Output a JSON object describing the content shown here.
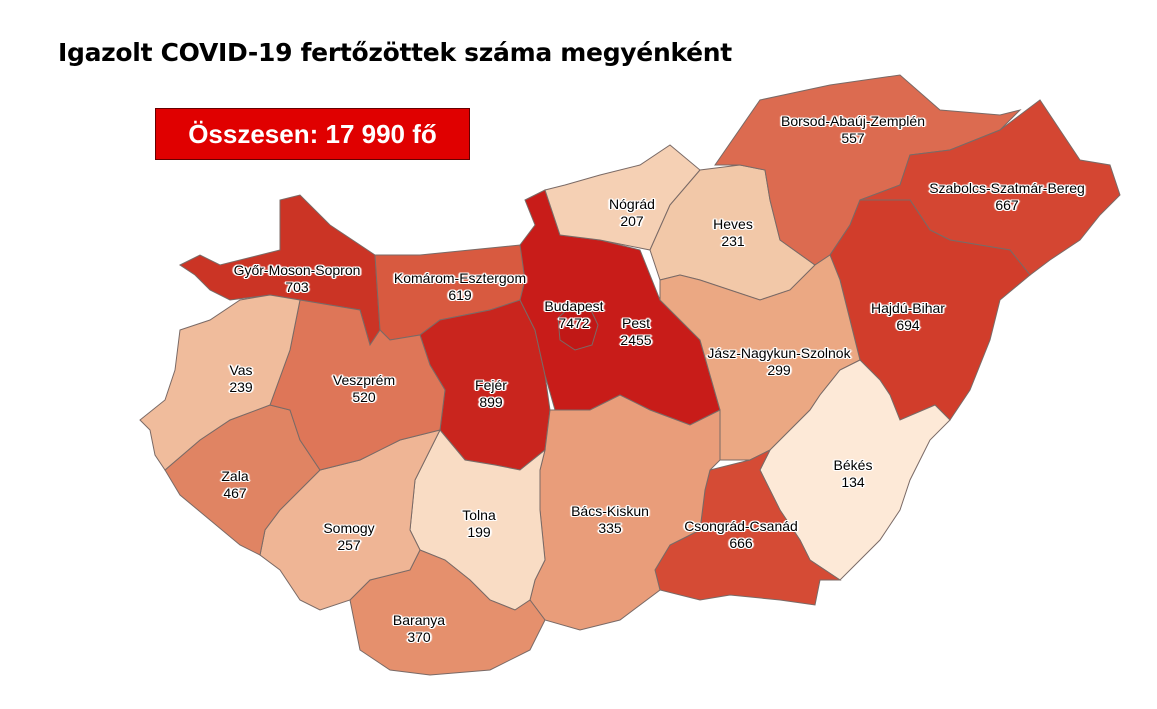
{
  "title": "Igazolt COVID-19 fertőzöttek száma megyénként",
  "total_label": "Összesen: 17 990 fő",
  "counties": [
    {
      "name": "Győr-Moson-Sopron",
      "value": "703",
      "color": "#cb3425"
    },
    {
      "name": "Komárom-Esztergom",
      "value": "619",
      "color": "#d85a40"
    },
    {
      "name": "Fejér",
      "value": "899",
      "color": "#c9251e"
    },
    {
      "name": "Pest",
      "value": "2455",
      "color": "#c81c19"
    },
    {
      "name": "Budapest",
      "value": "7472",
      "color": "#c11816"
    },
    {
      "name": "Nógrád",
      "value": "207",
      "color": "#f5d0b4"
    },
    {
      "name": "Heves",
      "value": "231",
      "color": "#f2c8a8"
    },
    {
      "name": "Borsod-Abaúj-Zemplén",
      "value": "557",
      "color": "#dc6b50"
    },
    {
      "name": "Szabolcs-Szatmár-Bereg",
      "value": "667",
      "color": "#d44632"
    },
    {
      "name": "Hajdú-Bihar",
      "value": "694",
      "color": "#d13d2b"
    },
    {
      "name": "Jász-Nagykun-Szolnok",
      "value": "299",
      "color": "#eba883"
    },
    {
      "name": "Békés",
      "value": "134",
      "color": "#fde9d7"
    },
    {
      "name": "Csongrád-Csanád",
      "value": "666",
      "color": "#d54b35"
    },
    {
      "name": "Bács-Kiskun",
      "value": "335",
      "color": "#e99d7a"
    },
    {
      "name": "Tolna",
      "value": "199",
      "color": "#f9dcc4"
    },
    {
      "name": "Baranya",
      "value": "370",
      "color": "#e5906d"
    },
    {
      "name": "Somogy",
      "value": "257",
      "color": "#efb595"
    },
    {
      "name": "Zala",
      "value": "467",
      "color": "#e08463"
    },
    {
      "name": "Veszprém",
      "value": "520",
      "color": "#de7658"
    },
    {
      "name": "Vas",
      "value": "239",
      "color": "#f0bc9c"
    }
  ]
}
